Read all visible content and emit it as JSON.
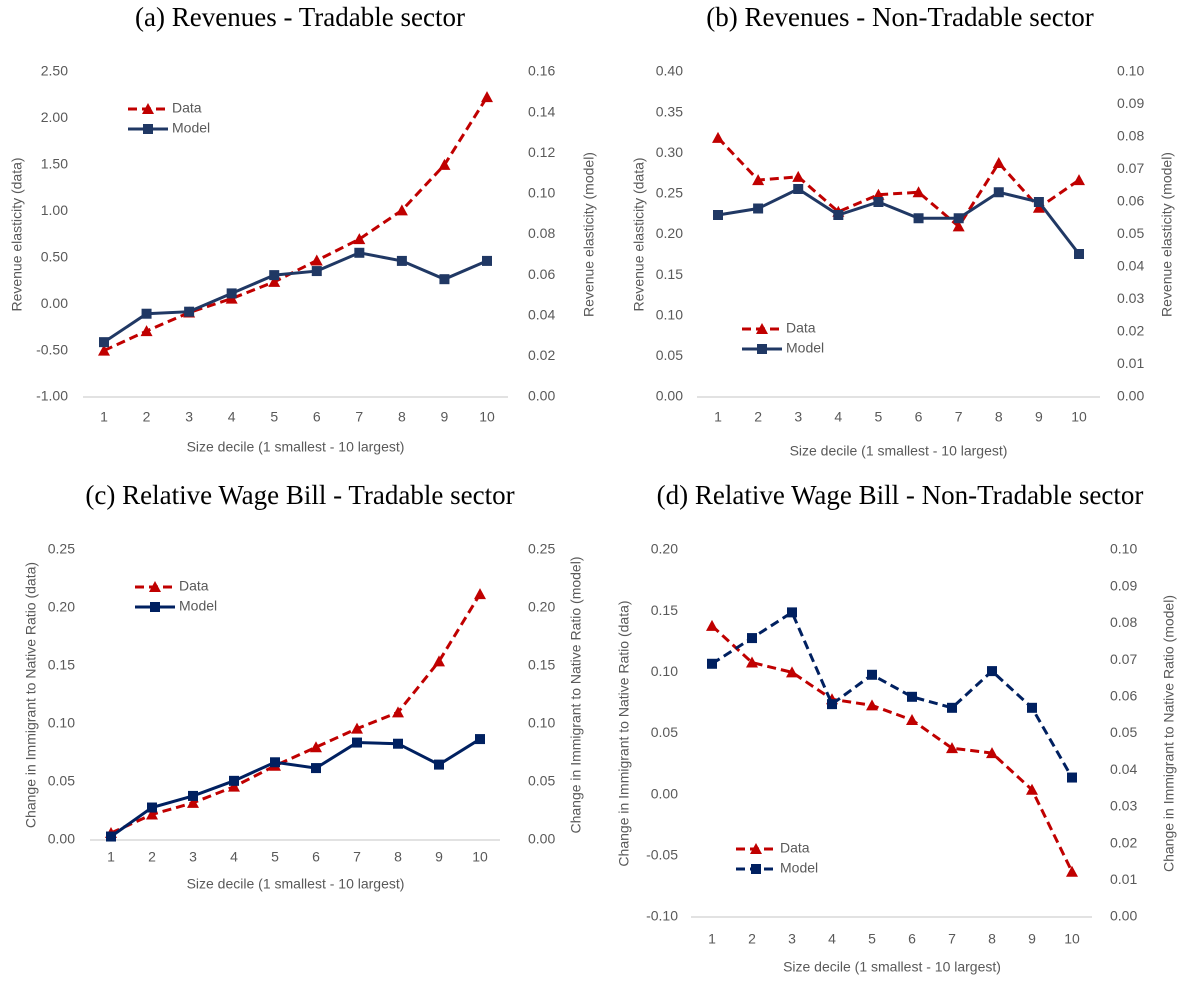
{
  "chart_data": [
    {
      "type": "line",
      "title": "(a) Revenues - Tradable sector",
      "xlabel": "Size decile (1 smallest - 10 largest)",
      "ylabel": "Revenue elasticity (data)",
      "y2label": "Revenue elasticity (model)",
      "legend": "upper left",
      "categories": [
        "1",
        "2",
        "3",
        "4",
        "5",
        "6",
        "7",
        "8",
        "9",
        "10"
      ],
      "series": [
        {
          "name": "Data",
          "color": "#c00000",
          "linestyle": "dashed",
          "marker": "triangle",
          "values": [
            -0.5,
            -0.29,
            -0.09,
            0.06,
            0.24,
            0.47,
            0.7,
            1.01,
            1.5,
            2.23
          ]
        },
        {
          "name": "Model",
          "color": "#203864",
          "linestyle": "solid",
          "marker": "square",
          "axis": "y2",
          "values": [
            0.027,
            0.041,
            0.042,
            0.051,
            0.06,
            0.062,
            0.071,
            0.067,
            0.058,
            0.067
          ]
        }
      ],
      "ylim": [
        -1,
        2.5
      ],
      "yticks": [
        {
          "value": -1,
          "label": "-1.00"
        },
        {
          "value": -0.5,
          "label": "-0.50"
        },
        {
          "value": 0,
          "label": "0.00"
        },
        {
          "value": 0.5,
          "label": "0.50"
        },
        {
          "value": 1,
          "label": "1.00"
        },
        {
          "value": 1.5,
          "label": "1.50"
        },
        {
          "value": 2,
          "label": "2.00"
        },
        {
          "value": 2.5,
          "label": "2.50"
        }
      ],
      "y2lim": [
        0,
        0.16
      ],
      "y2ticks": [
        {
          "value": 0,
          "label": "0.00"
        },
        0.02,
        0.04,
        0.06,
        0.08,
        {
          "value": 0.1,
          "label": "0.10"
        },
        0.12,
        0.14,
        0.16
      ]
    },
    {
      "type": "line",
      "title": "(b) Revenues - Non-Tradable sector",
      "xlabel": "Size decile (1 smallest - 10 largest)",
      "ylabel": "Revenue elasticity (data)",
      "y2label": "Revenue elasticity (model)",
      "legend": "lower left",
      "categories": [
        "1",
        "2",
        "3",
        "4",
        "5",
        "6",
        "7",
        "8",
        "9",
        "10"
      ],
      "series": [
        {
          "name": "Data",
          "color": "#c00000",
          "linestyle": "dashed",
          "marker": "triangle",
          "values": [
            0.319,
            0.267,
            0.271,
            0.228,
            0.249,
            0.252,
            0.21,
            0.288,
            0.233,
            0.267
          ]
        },
        {
          "name": "Model",
          "color": "#203864",
          "linestyle": "solid",
          "marker": "square",
          "axis": "y2",
          "values": [
            0.056,
            0.058,
            0.064,
            0.056,
            0.06,
            0.055,
            0.055,
            0.063,
            0.06,
            0.044
          ]
        }
      ],
      "ylim": [
        0,
        0.4
      ],
      "yticks": [
        {
          "value": 0,
          "label": "0.00"
        },
        0.05,
        {
          "value": 0.1,
          "label": "0.10"
        },
        0.15,
        {
          "value": 0.2,
          "label": "0.20"
        },
        0.25,
        {
          "value": 0.3,
          "label": "0.30"
        },
        0.35,
        {
          "value": 0.4,
          "label": "0.40"
        }
      ],
      "y2lim": [
        0,
        0.1
      ],
      "y2ticks": [
        {
          "value": 0,
          "label": "0.00"
        },
        0.01,
        0.02,
        0.03,
        0.04,
        0.05,
        0.06,
        0.07,
        0.08,
        0.09,
        {
          "value": 0.1,
          "label": "0.10"
        }
      ]
    },
    {
      "type": "line",
      "title": "(c) Relative Wage Bill - Tradable sector",
      "xlabel": "Size decile (1 smallest - 10 largest)",
      "ylabel": "Change in Immigrant to Native Ratio (data)",
      "y2label": "Change in Immigrant to Native Ratio (model)",
      "legend": "upper left",
      "categories": [
        "1",
        "2",
        "3",
        "4",
        "5",
        "6",
        "7",
        "8",
        "9",
        "10"
      ],
      "series": [
        {
          "name": "Data",
          "color": "#c00000",
          "linestyle": "dashed",
          "marker": "triangle",
          "values": [
            0.006,
            0.022,
            0.032,
            0.046,
            0.064,
            0.08,
            0.096,
            0.11,
            0.154,
            0.212
          ]
        },
        {
          "name": "Model",
          "color": "#002060",
          "linestyle": "solid",
          "marker": "square",
          "axis": "y2",
          "values": [
            0.003,
            0.028,
            0.038,
            0.051,
            0.067,
            0.062,
            0.084,
            0.083,
            0.065,
            0.087
          ]
        }
      ],
      "ylim": [
        0,
        0.25
      ],
      "yticks": [
        {
          "value": 0,
          "label": "0.00"
        },
        0.05,
        {
          "value": 0.1,
          "label": "0.10"
        },
        0.15,
        {
          "value": 0.2,
          "label": "0.20"
        },
        0.25
      ],
      "y2lim": [
        0,
        0.25
      ],
      "y2ticks": [
        {
          "value": 0,
          "label": "0.00"
        },
        0.05,
        {
          "value": 0.1,
          "label": "0.10"
        },
        0.15,
        {
          "value": 0.2,
          "label": "0.20"
        },
        0.25
      ]
    },
    {
      "type": "line",
      "title": "(d) Relative Wage Bill - Non-Tradable sector",
      "xlabel": "Size decile (1 smallest - 10 largest)",
      "ylabel": "Change in Immigrant to Native Ratio (data)",
      "y2label": "Change in Immigrant to Native Ratio (model)",
      "legend": "lower left",
      "categories": [
        "1",
        "2",
        "3",
        "4",
        "5",
        "6",
        "7",
        "8",
        "9",
        "10"
      ],
      "series": [
        {
          "name": "Data",
          "color": "#c00000",
          "linestyle": "dashed",
          "marker": "triangle",
          "values": [
            0.138,
            0.108,
            0.1,
            0.078,
            0.073,
            0.061,
            0.038,
            0.034,
            0.004,
            -0.063
          ]
        },
        {
          "name": "Model",
          "color": "#002060",
          "linestyle": "dashed",
          "marker": "square",
          "axis": "y2",
          "values": [
            0.069,
            0.076,
            0.083,
            0.058,
            0.066,
            0.06,
            0.057,
            0.067,
            0.057,
            0.038
          ]
        }
      ],
      "ylim": [
        -0.1,
        0.2
      ],
      "yticks": [
        {
          "value": -0.1,
          "label": "-0.10"
        },
        -0.05,
        {
          "value": 0,
          "label": "0.00"
        },
        0.05,
        {
          "value": 0.1,
          "label": "0.10"
        },
        0.15,
        {
          "value": 0.2,
          "label": "0.20"
        }
      ],
      "y2lim": [
        0,
        0.1
      ],
      "y2ticks": [
        {
          "value": 0,
          "label": "0.00"
        },
        0.01,
        0.02,
        0.03,
        0.04,
        0.05,
        0.06,
        0.07,
        0.08,
        0.09,
        {
          "value": 0.1,
          "label": "0.10"
        }
      ]
    }
  ]
}
